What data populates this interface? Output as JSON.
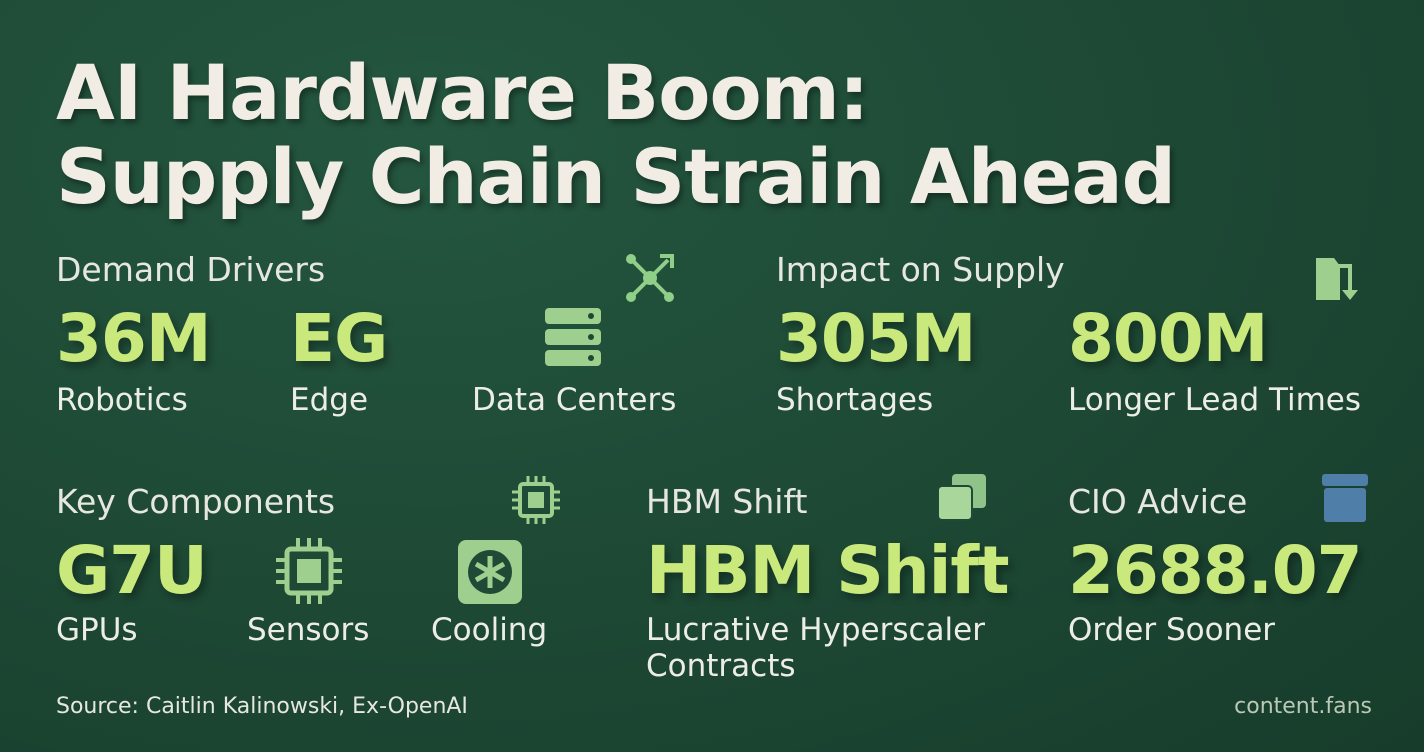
{
  "header": {
    "title_lines": [
      "AI Hardware Boom:",
      "Supply Chain Strain Ahead"
    ]
  },
  "sections": [
    {
      "heading": "Demand Drivers",
      "items": [
        {
          "value": "36M",
          "label": "Robotics"
        },
        {
          "value": "EG",
          "label": "Edge"
        },
        {
          "label": "Data Centers"
        }
      ]
    },
    {
      "heading": "Impact on Supply",
      "items": [
        {
          "value": "305M",
          "label": "Shortages"
        },
        {
          "value": "800M",
          "label": "Longer Lead Times"
        }
      ]
    },
    {
      "heading": "Key Components",
      "items": [
        {
          "value": "G7U",
          "label": "GPUs"
        },
        {
          "label": "Sensors"
        },
        {
          "label": "Cooling"
        }
      ]
    },
    {
      "heading": "HBM Shift",
      "items": [
        {
          "value": "HBM Shift",
          "label": "Lucrative Hyperscaler Contracts"
        }
      ]
    },
    {
      "heading": "CIO Advice",
      "items": [
        {
          "value": "2688.07",
          "label": "Order Sooner"
        }
      ]
    }
  ],
  "footer": {
    "source": "Source: Caitlin Kalinowski, Ex-OpenAI",
    "brand": "content.fans"
  }
}
